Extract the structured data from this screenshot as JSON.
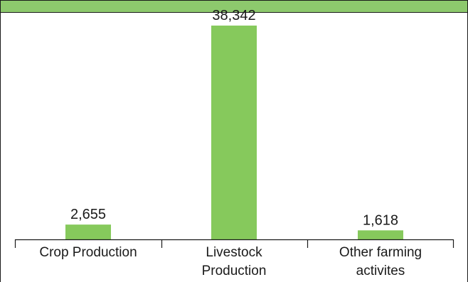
{
  "chart_data": {
    "type": "bar",
    "title": "",
    "xlabel": "",
    "ylabel": "",
    "categories": [
      [
        "Crop Production"
      ],
      [
        "Livestock",
        "Production"
      ],
      [
        "Other farming",
        "activites"
      ]
    ],
    "values": [
      2655,
      38342,
      1618
    ],
    "value_labels": [
      "2,655",
      "38,342",
      "1,618"
    ],
    "ylim": [
      0,
      40000
    ],
    "grid": false,
    "legend": "none",
    "colors": {
      "bar": "#86c95c",
      "header": "#8dc96d",
      "axis": "#1a1a1a"
    }
  }
}
